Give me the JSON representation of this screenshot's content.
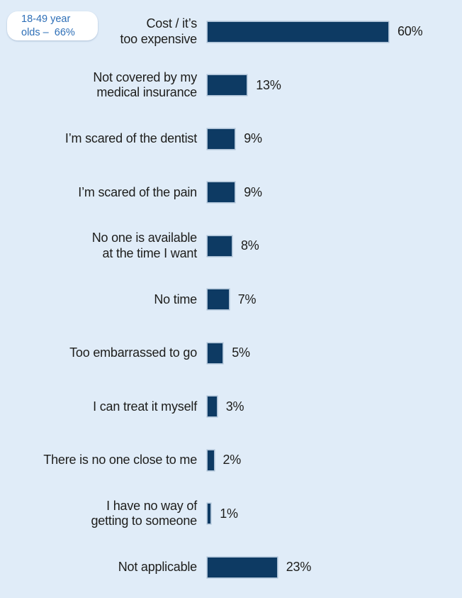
{
  "page": {
    "background_color": "#e0ecf8"
  },
  "callout": {
    "text": "18-49 year olds – 66%",
    "lines": [
      "18-49 year",
      "olds –  66%"
    ],
    "text_color": "#2e6fb7",
    "background": "#ffffff"
  },
  "chart_data": {
    "type": "bar",
    "orientation": "horizontal",
    "value_unit": "%",
    "categories": [
      "Cost / it’s too expensive",
      "Not covered by my medical insurance",
      "I’m scared of the dentist",
      "I’m scared of the pain",
      "No one is available at the time I want",
      "No time",
      "Too embarrassed to go",
      "I can treat it myself",
      "There is no one close to me",
      "I have no way of getting to someone",
      "Not applicable"
    ],
    "values": [
      60,
      13,
      9,
      9,
      8,
      7,
      5,
      3,
      2,
      1,
      23
    ],
    "value_labels": [
      "60%",
      "13%",
      "9%",
      "9%",
      "8%",
      "7%",
      "5%",
      "3%",
      "2%",
      "1%",
      "23%"
    ],
    "label_lines": [
      [
        "Cost / it’s",
        "too expensive"
      ],
      [
        "Not covered by my",
        "medical insurance"
      ],
      [
        "I’m scared of the dentist"
      ],
      [
        "I’m scared of the pain"
      ],
      [
        "No one is available",
        "at the time I want"
      ],
      [
        "No time"
      ],
      [
        "Too embarrassed to go"
      ],
      [
        "I can treat it myself"
      ],
      [
        "There is no one close to me"
      ],
      [
        "I have no way of",
        "getting to someone"
      ],
      [
        "Not applicable"
      ]
    ],
    "xlim": [
      0,
      63
    ],
    "grid": false,
    "axes_visible": false,
    "legend": "none",
    "bar_color": "#0d3a63",
    "bar_border_color": "#a9bed3",
    "text_color": "#1d1d1b",
    "annotation": "18-49 year olds – 66%"
  }
}
